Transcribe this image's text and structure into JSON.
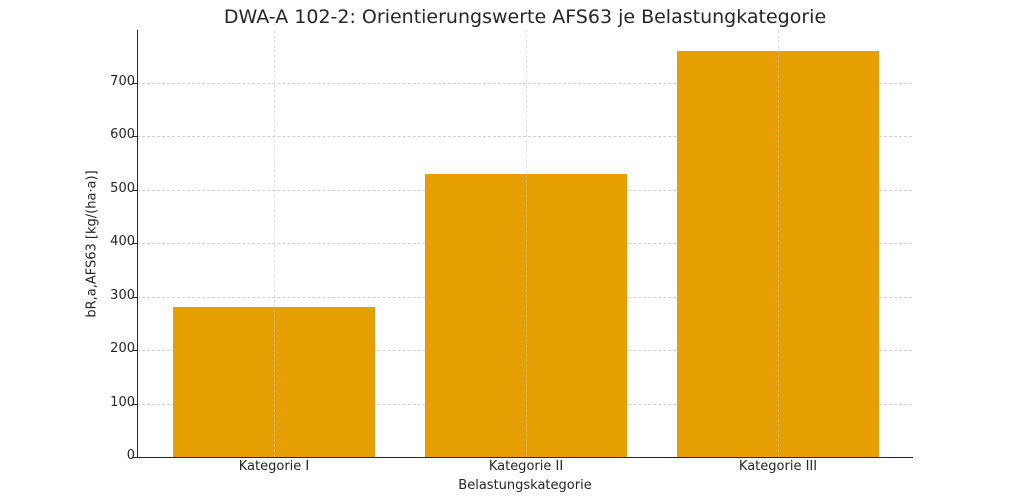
{
  "chart_data": {
    "type": "bar",
    "title": "DWA-A 102-2: Orientierungswerte AFS63 je Belastungkategorie",
    "xlabel": "Belastungskategorie",
    "ylabel": "bR,a,AFS63 [kg/(ha·a)]",
    "categories": [
      "Kategorie I",
      "Kategorie II",
      "Kategorie III"
    ],
    "values": [
      280,
      530,
      760
    ],
    "ylim": [
      0,
      800
    ],
    "yticks": [
      "0",
      "100",
      "200",
      "300",
      "400",
      "500",
      "600",
      "700"
    ],
    "grid": true,
    "bar_color": "#e69f00",
    "legend": null
  }
}
